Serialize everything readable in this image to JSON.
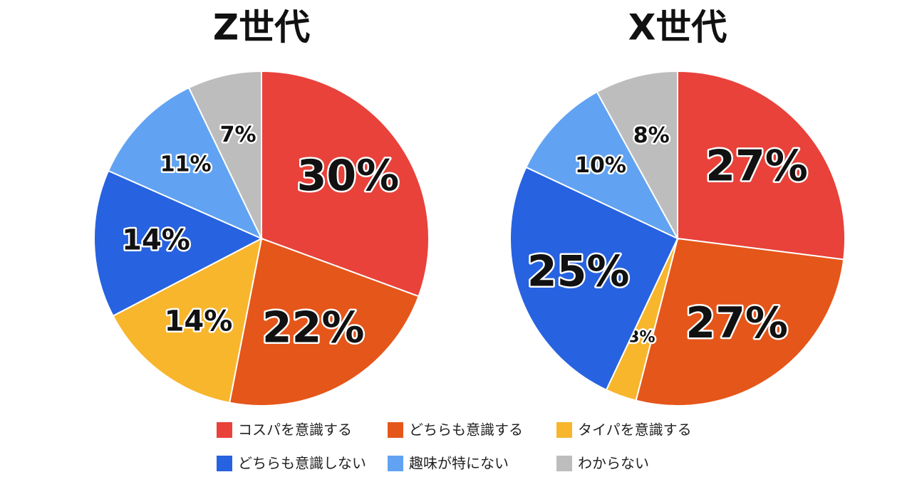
{
  "chart_data": [
    {
      "type": "pie",
      "title": "Z世代",
      "categories": [
        "コスパを意識する",
        "どちらも意識する",
        "タイパを意識する",
        "どちらも意識しない",
        "趣味が特にない",
        "わからない"
      ],
      "values": [
        30,
        22,
        14,
        14,
        11,
        7
      ],
      "value_labels": [
        "30%",
        "22%",
        "14%",
        "14%",
        "11%",
        "7%"
      ],
      "colors": [
        "#e8423a",
        "#e5561a",
        "#f8b62d",
        "#2762e0",
        "#61a3f2",
        "#bdbdbd"
      ]
    },
    {
      "type": "pie",
      "title": "X世代",
      "categories": [
        "コスパを意識する",
        "どちらも意識する",
        "タイパを意識する",
        "どちらも意識しない",
        "趣味が特にない",
        "わからない"
      ],
      "values": [
        27,
        27,
        3,
        25,
        10,
        8
      ],
      "value_labels": [
        "27%",
        "27%",
        "3%",
        "25%",
        "10%",
        "8%"
      ],
      "colors": [
        "#e8423a",
        "#e5561a",
        "#f8b62d",
        "#2762e0",
        "#61a3f2",
        "#bdbdbd"
      ]
    }
  ]
}
